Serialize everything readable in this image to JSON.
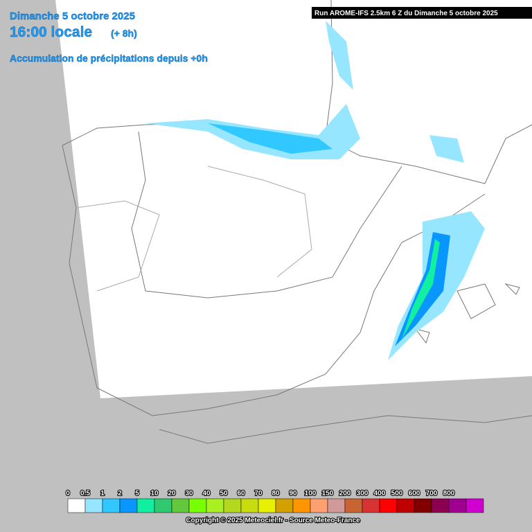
{
  "header": {
    "date": "Dimanche 5 octobre 2025",
    "time": "16:00 locale",
    "offset": "(+ 8h)",
    "subtitle": "Accumulation de précipitations depuis +0h",
    "run": "Run AROME-IFS 2.5km 6 Z du Dimanche 5 octobre 2025"
  },
  "legend": {
    "values": [
      0,
      0.5,
      1,
      2,
      5,
      10,
      20,
      30,
      40,
      50,
      60,
      70,
      80,
      90,
      100,
      150,
      200,
      300,
      400,
      500,
      600,
      700,
      800
    ],
    "colors": [
      "#ffffff",
      "#96e6ff",
      "#30c8ff",
      "#0a96ff",
      "#10f0a0",
      "#30c870",
      "#64c83c",
      "#78ff00",
      "#a8f020",
      "#b4d81e",
      "#c8dc10",
      "#e6f000",
      "#d2a000",
      "#ff9600",
      "#ffa070",
      "#d09a9a",
      "#c86432",
      "#d83232",
      "#ff0000",
      "#c00000",
      "#800000",
      "#8c0050",
      "#a00090",
      "#d000d0"
    ]
  },
  "footer": {
    "copyright": "Copyright © 2025 Meteociel.fr - Source Meteo-France"
  }
}
